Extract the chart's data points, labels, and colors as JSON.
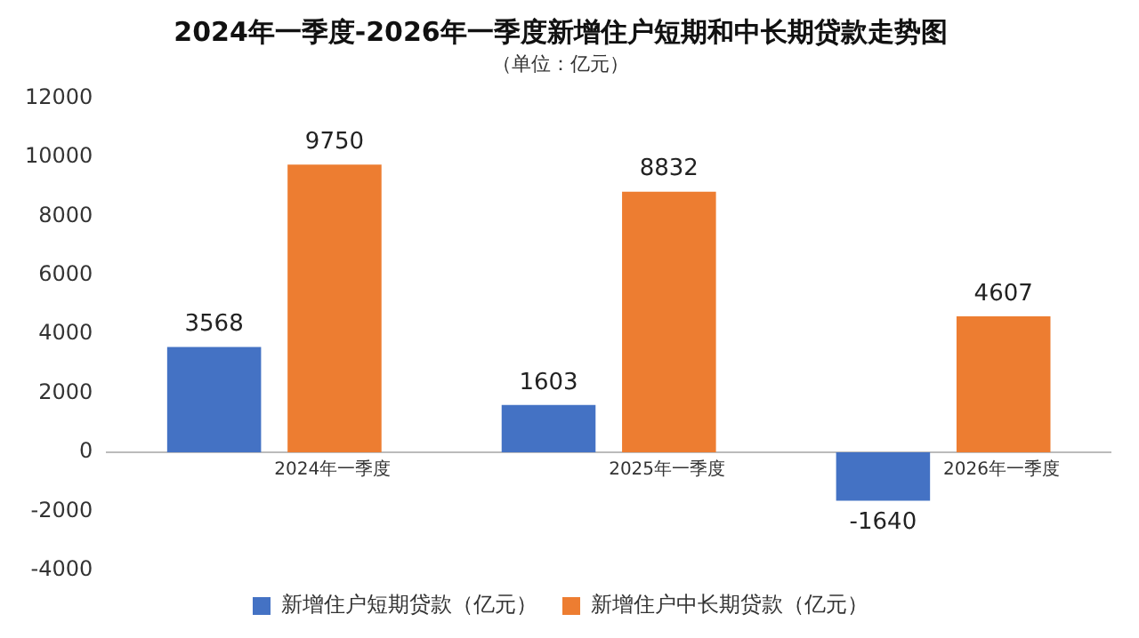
{
  "chart_data": {
    "type": "bar",
    "title": "2024年一季度-2026年一季度新增住户短期和中长期贷款走势图",
    "subtitle": "（单位：亿元）",
    "categories": [
      "2024年一季度",
      "2025年一季度",
      "2026年一季度"
    ],
    "series": [
      {
        "name": "新增住户短期贷款（亿元）",
        "color": "#4472c4",
        "values": [
          3568,
          1603,
          -1640
        ]
      },
      {
        "name": "新增住户中长期贷款（亿元）",
        "color": "#ed7d31",
        "values": [
          9750,
          8832,
          4607
        ]
      }
    ],
    "ylim": [
      -4000,
      12000
    ],
    "yticks": [
      -4000,
      -2000,
      0,
      2000,
      4000,
      6000,
      8000,
      10000,
      12000
    ],
    "grid": false,
    "legend": "bottom",
    "data_labels": true
  }
}
